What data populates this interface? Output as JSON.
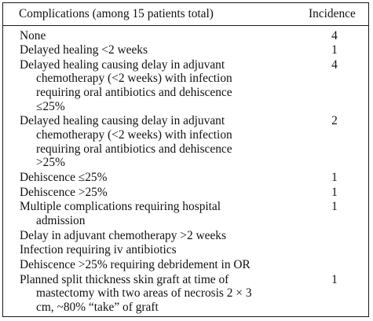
{
  "table": {
    "headers": {
      "complications": "Complications (among 15 patients total)",
      "incidence": "Incidence"
    },
    "rows": [
      {
        "lines": [
          "None"
        ],
        "incidence": "4"
      },
      {
        "lines": [
          "Delayed healing <2 weeks"
        ],
        "incidence": "1"
      },
      {
        "lines": [
          "Delayed healing causing delay in adjuvant",
          "chemotherapy (<2 weeks) with infection",
          "requiring oral antibiotics and dehiscence",
          "≤25%"
        ],
        "incidence": "4"
      },
      {
        "lines": [
          "Delayed healing causing delay in adjuvant",
          "chemotherapy (<2 weeks) with infection",
          "requiring oral antibiotics and dehiscence",
          ">25%"
        ],
        "incidence": "2"
      },
      {
        "lines": [
          "Dehiscence ≤25%"
        ],
        "incidence": "1"
      },
      {
        "lines": [
          "Dehiscence >25%"
        ],
        "incidence": "1"
      },
      {
        "lines": [
          "Multiple complications requiring hospital",
          "admission"
        ],
        "incidence": "1"
      },
      {
        "lines": [
          "Delay in adjuvant chemotherapy >2 weeks"
        ],
        "incidence": ""
      },
      {
        "lines": [
          "Infection requiring iv antibiotics"
        ],
        "incidence": ""
      },
      {
        "lines": [
          "Dehiscence >25% requiring debridement in OR"
        ],
        "incidence": ""
      },
      {
        "lines": [
          "Planned split thickness skin graft at time of",
          "mastectomy with two areas of necrosis 2 × 3",
          "cm, ~80% “take” of graft"
        ],
        "incidence": "1"
      }
    ]
  }
}
